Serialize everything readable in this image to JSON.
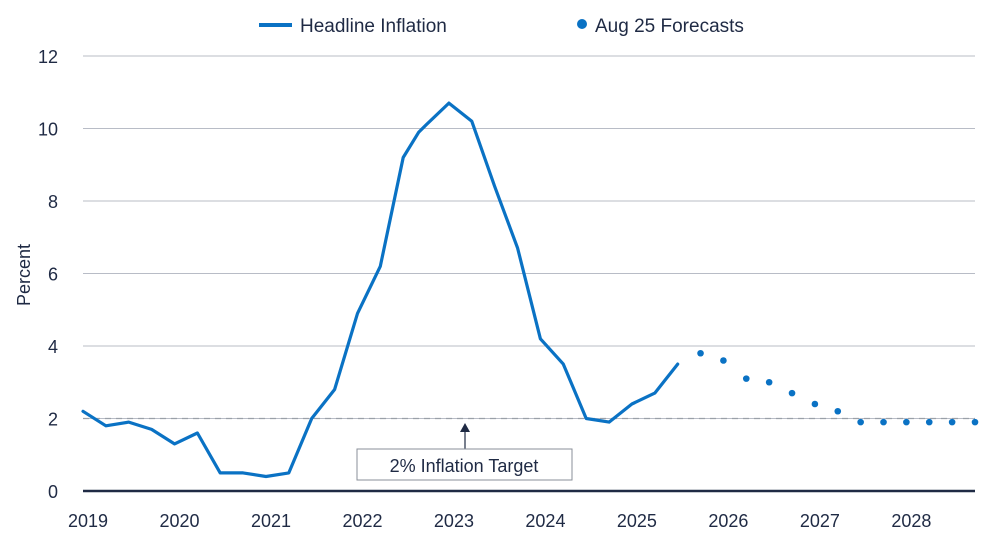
{
  "chart_data": {
    "type": "line",
    "title": "",
    "xlabel": "",
    "ylabel": "Percent",
    "xlim": [
      2019.0,
      2028.75
    ],
    "ylim": [
      0,
      12
    ],
    "yticks": [
      0,
      2,
      4,
      6,
      8,
      10,
      12
    ],
    "xticks": [
      2019,
      2020,
      2021,
      2022,
      2023,
      2024,
      2025,
      2026,
      2027,
      2028
    ],
    "grid": true,
    "legend_position": "top-center",
    "colors": {
      "series": "#0a72c4",
      "axis": "#1f2a44",
      "grid": "#b8bcc6",
      "target": "#9aa0a8"
    },
    "series": [
      {
        "name": "Headline Inflation",
        "style": "line",
        "x": [
          2019.0,
          2019.25,
          2019.5,
          2019.75,
          2020.0,
          2020.25,
          2020.5,
          2020.75,
          2021.0,
          2021.25,
          2021.5,
          2021.75,
          2022.0,
          2022.25,
          2022.5,
          2022.67,
          2022.75,
          2023.0,
          2023.25,
          2023.5,
          2023.75,
          2024.0,
          2024.25,
          2024.5,
          2024.75,
          2025.0,
          2025.25,
          2025.5
        ],
        "y": [
          2.2,
          1.8,
          1.9,
          1.7,
          1.3,
          1.6,
          0.5,
          0.5,
          0.4,
          0.5,
          2.0,
          2.8,
          4.9,
          6.2,
          9.2,
          9.9,
          10.1,
          10.7,
          10.2,
          8.4,
          6.7,
          4.2,
          3.5,
          2.0,
          1.9,
          2.4,
          2.7,
          3.5
        ]
      },
      {
        "name": "Aug 25 Forecasts",
        "style": "dots",
        "x": [
          2025.75,
          2026.0,
          2026.25,
          2026.5,
          2026.75,
          2027.0,
          2027.25,
          2027.5,
          2027.75,
          2028.0,
          2028.25,
          2028.5,
          2028.75
        ],
        "y": [
          3.8,
          3.6,
          3.1,
          3.0,
          2.7,
          2.4,
          2.2,
          1.9,
          1.9,
          1.9,
          1.9,
          1.9,
          1.9
        ]
      }
    ],
    "reference_line": {
      "y": 2,
      "style": "dashed"
    },
    "annotations": [
      {
        "text": "2% Inflation Target",
        "points_to_y": 2,
        "points_to_x": 2023.0
      }
    ]
  }
}
